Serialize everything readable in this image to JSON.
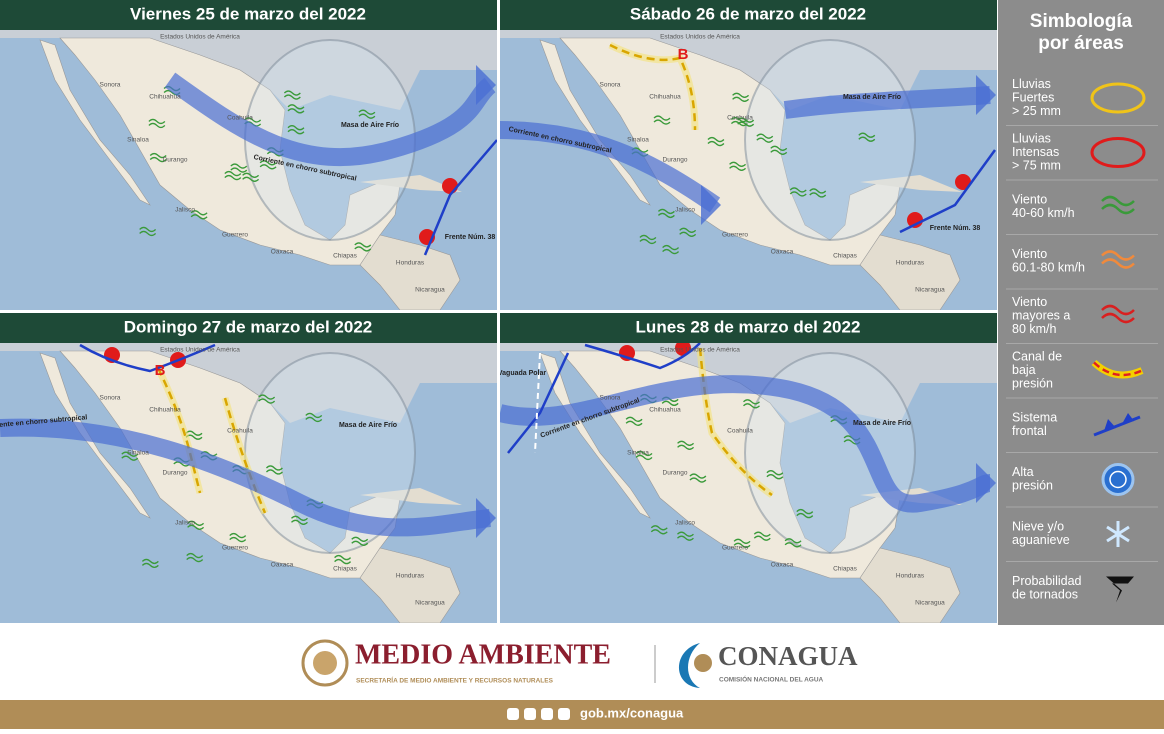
{
  "panels": [
    {
      "title": "Viernes 25 de marzo del 2022",
      "annotations": [
        "Masa de Aire Frío",
        "Corriente en chorro subtropical",
        "Frente Núm. 38"
      ]
    },
    {
      "title": "Sábado 26 de marzo del 2022",
      "annotations": [
        "B",
        "Masa de Aire Frío",
        "Corriente en chorro subtropical",
        "Frente Núm. 38"
      ]
    },
    {
      "title": "Domingo 27 de marzo del 2022",
      "annotations": [
        "B",
        "Corriente en chorro subtropical",
        "Masa de Aire Frío"
      ]
    },
    {
      "title": "Lunes 28 de marzo del 2022",
      "annotations": [
        "Vaguada Polar",
        "Corriente en chorro subtropical",
        "Masa de Aire Frío"
      ]
    }
  ],
  "places": [
    "Estados Unidos de América",
    "Sonora",
    "Chihuahua",
    "Coahuila",
    "Durango",
    "Sinaloa",
    "Jalisco",
    "Guerrero",
    "Oaxaca",
    "Chiapas",
    "Honduras",
    "Nicaragua"
  ],
  "legend": {
    "title": [
      "Simbología",
      "por áreas"
    ],
    "items": [
      {
        "lines": [
          "Lluvias",
          "Fuertes",
          "> 25 mm"
        ]
      },
      {
        "lines": [
          "Lluvias",
          "Intensas",
          "> 75 mm"
        ]
      },
      {
        "lines": [
          "Viento",
          "40-60 km/h"
        ]
      },
      {
        "lines": [
          "Viento",
          "60.1-80 km/h"
        ]
      },
      {
        "lines": [
          "Viento",
          "mayores a",
          "80 km/h"
        ]
      },
      {
        "lines": [
          "Canal de",
          "baja",
          "presión"
        ]
      },
      {
        "lines": [
          "Sistema",
          "frontal"
        ]
      },
      {
        "lines": [
          "Alta",
          "presión"
        ]
      },
      {
        "lines": [
          "Nieve y/o",
          "aguanieve"
        ]
      },
      {
        "lines": [
          "Probabilidad",
          "de tornados"
        ]
      }
    ]
  },
  "footer": {
    "brand1": "MEDIO AMBIENTE",
    "brand1_sub": "SECRETARÍA DE MEDIO AMBIENTE Y RECURSOS NATURALES",
    "brand2": "CONAGUA",
    "brand2_sub": "COMISIÓN NACIONAL DEL AGUA",
    "url": "gob.mx/conagua"
  }
}
